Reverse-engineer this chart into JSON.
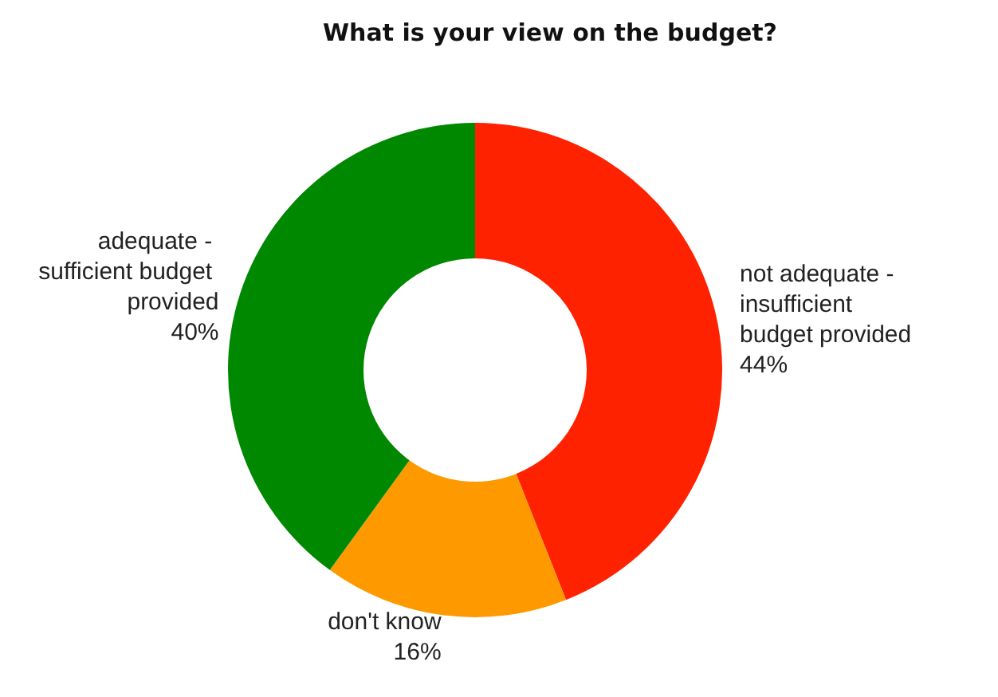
{
  "chart_data": {
    "type": "donut",
    "title": "What is your view on the budget?",
    "categories": [
      "not adequate - insufficient budget provided",
      "don't know",
      "adequate - sufficient budget provided"
    ],
    "values": [
      44,
      16,
      40
    ],
    "value_labels": [
      "44%",
      "16%",
      "40%"
    ],
    "colors": [
      "#ff2200",
      "#ff9900",
      "#008800"
    ],
    "legend": false
  }
}
